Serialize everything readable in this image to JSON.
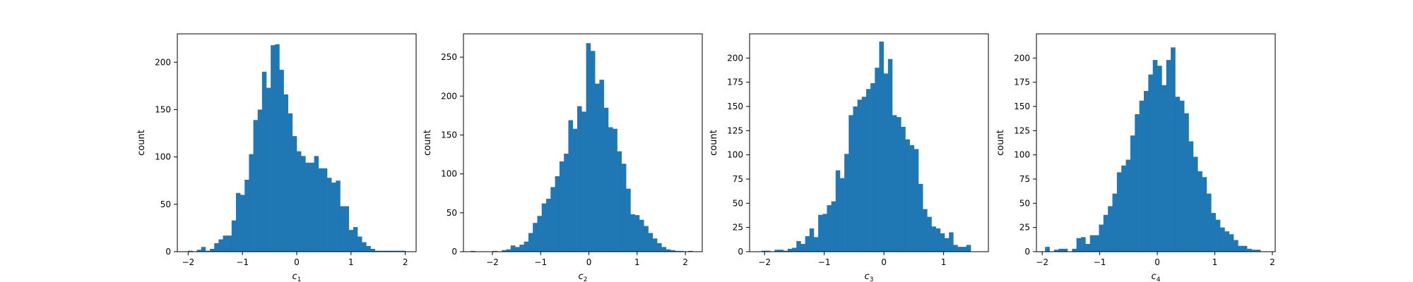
{
  "chart_data": [
    {
      "type": "bar",
      "xlabel": "c",
      "xlabel_sub": "1",
      "ylabel": "count",
      "xlim": [
        -2.2,
        2.2
      ],
      "ylim": [
        0,
        230
      ],
      "xticks": [
        -2,
        -1,
        0,
        1,
        2
      ],
      "xtick_labels": [
        "−2",
        "−1",
        "0",
        "1",
        "2"
      ],
      "yticks": [
        0,
        50,
        100,
        150,
        200
      ],
      "ytick_labels": [
        "0",
        "50",
        "100",
        "150",
        "200"
      ],
      "bin_start": -2.0,
      "bin_width": 0.08,
      "values": [
        1,
        0,
        2,
        5,
        1,
        3,
        9,
        13,
        17,
        17,
        33,
        62,
        60,
        76,
        103,
        139,
        150,
        190,
        173,
        218,
        219,
        192,
        166,
        146,
        122,
        106,
        101,
        94,
        94,
        101,
        88,
        88,
        78,
        73,
        75,
        48,
        48,
        23,
        26,
        16,
        10,
        6,
        3,
        1,
        1,
        1,
        1,
        1,
        1,
        1
      ],
      "color": "#1f77b4"
    },
    {
      "type": "bar",
      "xlabel": "c",
      "xlabel_sub": "2",
      "ylabel": "count",
      "xlim": [
        -2.6,
        2.35
      ],
      "ylim": [
        0,
        280
      ],
      "xticks": [
        -2,
        -1,
        0,
        1,
        2
      ],
      "xtick_labels": [
        "−2",
        "−1",
        "0",
        "1",
        "2"
      ],
      "yticks": [
        0,
        50,
        100,
        150,
        200,
        250
      ],
      "ytick_labels": [
        "0",
        "50",
        "100",
        "150",
        "200",
        "250"
      ],
      "bin_start": -2.45,
      "bin_width": 0.092,
      "values": [
        1,
        0,
        0,
        0,
        0,
        1,
        0,
        2,
        3,
        8,
        6,
        9,
        13,
        24,
        37,
        46,
        62,
        68,
        83,
        97,
        116,
        126,
        169,
        158,
        187,
        180,
        268,
        258,
        216,
        221,
        185,
        160,
        158,
        129,
        113,
        81,
        48,
        47,
        41,
        33,
        24,
        17,
        11,
        6,
        3,
        2,
        1,
        1,
        0,
        1
      ],
      "color": "#1f77b4"
    },
    {
      "type": "bar",
      "xlabel": "c",
      "xlabel_sub": "3",
      "ylabel": "count",
      "xlim": [
        -2.25,
        1.75
      ],
      "ylim": [
        0,
        225
      ],
      "xticks": [
        -2,
        -1,
        0,
        1
      ],
      "xtick_labels": [
        "−2",
        "−1",
        "0",
        "1"
      ],
      "yticks": [
        0,
        25,
        50,
        75,
        100,
        125,
        150,
        175,
        200
      ],
      "ytick_labels": [
        "0",
        "25",
        "50",
        "75",
        "100",
        "125",
        "150",
        "175",
        "200"
      ],
      "bin_start": -2.05,
      "bin_width": 0.073,
      "values": [
        1,
        1,
        0,
        2,
        2,
        1,
        3,
        4,
        11,
        8,
        16,
        24,
        15,
        38,
        39,
        48,
        52,
        84,
        76,
        101,
        141,
        150,
        157,
        160,
        168,
        174,
        190,
        217,
        184,
        199,
        141,
        139,
        129,
        116,
        110,
        106,
        70,
        44,
        36,
        26,
        24,
        19,
        14,
        20,
        7,
        5,
        5,
        7
      ],
      "color": "#1f77b4"
    },
    {
      "type": "bar",
      "xlabel": "c",
      "xlabel_sub": "4",
      "ylabel": "count",
      "xlim": [
        -2.1,
        2.05
      ],
      "ylim": [
        0,
        225
      ],
      "xticks": [
        -2,
        -1,
        0,
        1,
        2
      ],
      "xtick_labels": [
        "−2",
        "−1",
        "0",
        "1",
        "2"
      ],
      "yticks": [
        0,
        25,
        50,
        75,
        100,
        125,
        150,
        175,
        200
      ],
      "ytick_labels": [
        "0",
        "25",
        "50",
        "75",
        "100",
        "125",
        "150",
        "175",
        "200"
      ],
      "bin_start": -1.95,
      "bin_width": 0.078,
      "values": [
        5,
        0,
        2,
        3,
        3,
        0,
        3,
        14,
        15,
        8,
        17,
        17,
        28,
        38,
        47,
        60,
        82,
        89,
        95,
        120,
        142,
        156,
        166,
        183,
        198,
        192,
        172,
        198,
        211,
        160,
        156,
        143,
        114,
        98,
        83,
        77,
        60,
        40,
        33,
        25,
        21,
        18,
        12,
        6,
        6,
        3,
        2,
        2
      ],
      "color": "#1f77b4"
    }
  ]
}
